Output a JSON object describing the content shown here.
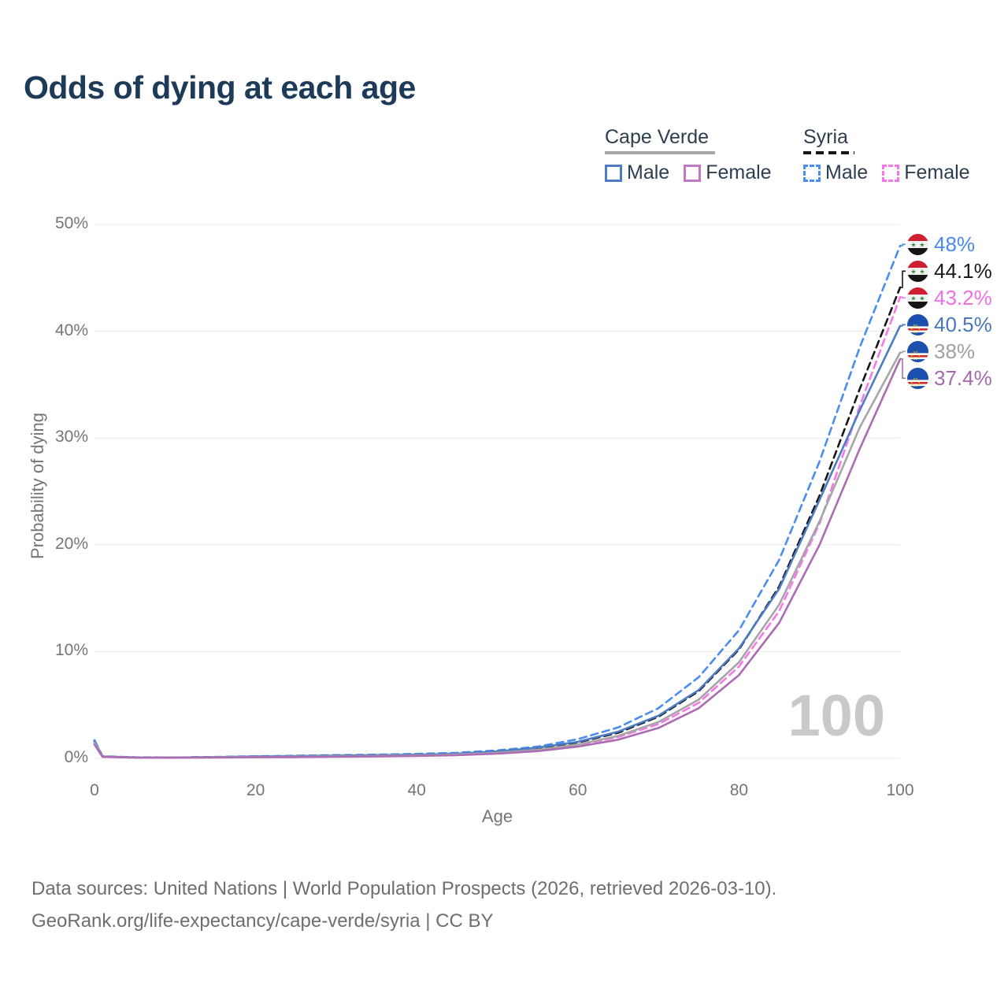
{
  "title": "Odds of dying at each age",
  "legend": {
    "groups": [
      {
        "label": "Cape Verde",
        "underline_style": "solid",
        "underline_color": "#a6a6a6",
        "items": [
          {
            "label": "Male",
            "style": "solid",
            "color": "#4b7cc4"
          },
          {
            "label": "Female",
            "style": "solid",
            "color": "#c077c4"
          }
        ]
      },
      {
        "label": "Syria",
        "underline_style": "dashed",
        "underline_color": "#161616",
        "items": [
          {
            "label": "Male",
            "style": "dashed",
            "color": "#4a8df0"
          },
          {
            "label": "Female",
            "style": "dashed",
            "color": "#f678e8"
          }
        ]
      }
    ]
  },
  "chart_data": {
    "type": "line",
    "title": "Odds of dying at each age",
    "xlabel": "Age",
    "ylabel": "Probability of dying",
    "xlim": [
      0,
      100
    ],
    "ylim": [
      0,
      50
    ],
    "xticks": [
      0,
      20,
      40,
      60,
      80,
      100
    ],
    "yticks": [
      0,
      10,
      20,
      30,
      40,
      50
    ],
    "ytick_suffix": "%",
    "grid": "horizontal",
    "legend_position": "top-right",
    "watermark": "100",
    "x": [
      0,
      1,
      5,
      10,
      15,
      20,
      25,
      30,
      35,
      40,
      45,
      50,
      55,
      60,
      65,
      70,
      75,
      80,
      85,
      90,
      95,
      100
    ],
    "series": [
      {
        "name": "Syria Male",
        "country": "Syria",
        "sex": "male",
        "style": "dashed",
        "color": "#4a8df0",
        "label_color": "#4a89f0",
        "flag": "syria",
        "end_label": "48%",
        "values": [
          1.7,
          0.2,
          0.1,
          0.09,
          0.13,
          0.2,
          0.25,
          0.3,
          0.35,
          0.42,
          0.52,
          0.75,
          1.1,
          1.8,
          2.9,
          4.7,
          7.6,
          12.0,
          18.6,
          27.8,
          38.5,
          48.0
        ]
      },
      {
        "name": "Syria",
        "country": "Syria",
        "sex": "both",
        "style": "dashed",
        "color": "#161616",
        "label_color": "#1a1a1a",
        "flag": "syria",
        "end_label": "44.1%",
        "values": [
          1.55,
          0.18,
          0.09,
          0.08,
          0.11,
          0.16,
          0.2,
          0.24,
          0.28,
          0.34,
          0.43,
          0.62,
          0.95,
          1.5,
          2.4,
          3.9,
          6.3,
          10.2,
          16.1,
          24.6,
          34.6,
          44.1
        ]
      },
      {
        "name": "Syria Female",
        "country": "Syria",
        "sex": "female",
        "style": "dashed",
        "color": "#f678e8",
        "label_color": "#f36ee4",
        "flag": "syria",
        "end_label": "43.2%",
        "values": [
          1.4,
          0.16,
          0.08,
          0.07,
          0.09,
          0.11,
          0.14,
          0.17,
          0.21,
          0.26,
          0.34,
          0.5,
          0.78,
          1.25,
          2.0,
          3.2,
          5.2,
          8.6,
          13.8,
          22.0,
          33.0,
          43.2
        ]
      },
      {
        "name": "Cape Verde Male",
        "country": "Cape Verde",
        "sex": "male",
        "style": "solid",
        "color": "#4b7cc4",
        "label_color": "#4a77b8",
        "flag": "cape-verde",
        "end_label": "40.5%",
        "values": [
          1.6,
          0.18,
          0.09,
          0.08,
          0.12,
          0.18,
          0.22,
          0.26,
          0.3,
          0.35,
          0.44,
          0.65,
          1.0,
          1.55,
          2.5,
          4.0,
          6.4,
          10.3,
          15.9,
          24.2,
          32.6,
          40.5
        ]
      },
      {
        "name": "Cape Verde",
        "country": "Cape Verde",
        "sex": "both",
        "style": "solid",
        "color": "#a6a6a6",
        "label_color": "#a0a0a0",
        "flag": "cape-verde",
        "end_label": "38%",
        "values": [
          1.45,
          0.16,
          0.08,
          0.07,
          0.1,
          0.13,
          0.16,
          0.19,
          0.23,
          0.28,
          0.36,
          0.52,
          0.8,
          1.3,
          2.1,
          3.4,
          5.5,
          9.0,
          14.4,
          22.2,
          31.0,
          38.0
        ]
      },
      {
        "name": "Cape Verde Female",
        "country": "Cape Verde",
        "sex": "female",
        "style": "solid",
        "color": "#ab6cb4",
        "label_color": "#a668ae",
        "flag": "cape-verde",
        "end_label": "37.4%",
        "values": [
          1.3,
          0.14,
          0.07,
          0.06,
          0.08,
          0.1,
          0.12,
          0.15,
          0.18,
          0.23,
          0.3,
          0.44,
          0.68,
          1.1,
          1.75,
          2.85,
          4.7,
          7.8,
          12.7,
          20.0,
          29.0,
          37.4
        ]
      }
    ],
    "flag_colors": {
      "syria": {
        "red": "#ce2030",
        "white": "#f2f2f2",
        "black": "#151515",
        "star_green": "#2e8b40"
      },
      "cape_verde": {
        "blue": "#1d50ae",
        "white": "#ffffff",
        "red": "#d42a2a",
        "star_yellow": "#f7d116"
      }
    }
  },
  "footer": {
    "line1": "Data sources: United Nations | World Population Prospects (2026, retrieved 2026-03-10).",
    "line2": "GeoRank.org/life-expectancy/cape-verde/syria | CC BY"
  }
}
